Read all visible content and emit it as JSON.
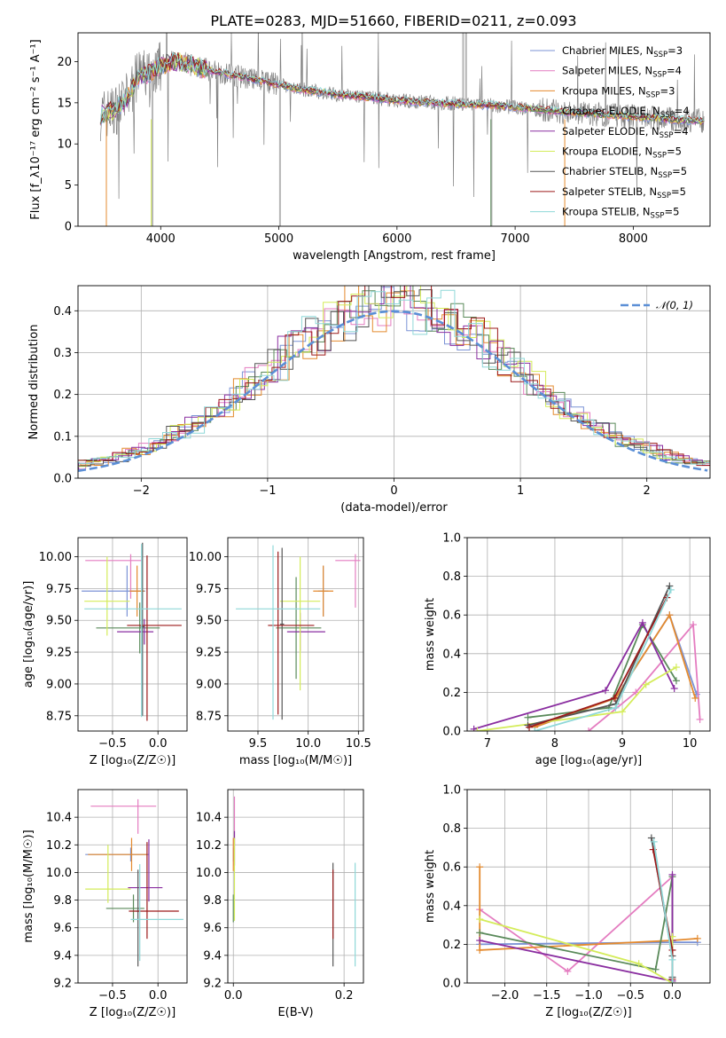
{
  "palette": {
    "Chabrier MILES": "#7b93d6",
    "Salpeter MILES": "#e47cc0",
    "Kroupa MILES": "#e48a2e",
    "Chabrier ELODIE": "#5a8a5a",
    "Salpeter ELODIE": "#8a2ea0",
    "Kroupa ELODIE": "#d4ec5a",
    "Chabrier STELIB": "#555555",
    "Salpeter STELIB": "#9c1a1a",
    "Kroupa STELIB": "#8fd8d8",
    "data": "#808080",
    "normal": "#5b8fd6"
  },
  "chart_data": [
    {
      "id": "spectrum",
      "type": "line",
      "title": "PLATE=0283, MJD=51660, FIBERID=0211, z=0.093",
      "xlabel": "wavelength [Angstrom, rest frame]",
      "ylabel": "Flux [f_λ10⁻¹⁷ erg cm⁻² s⁻¹ A⁻¹]",
      "xlim": [
        3300,
        8650
      ],
      "ylim": [
        0,
        23.5
      ],
      "xticks": [
        4000,
        5000,
        6000,
        7000,
        8000
      ],
      "yticks": [
        0,
        5,
        10,
        15,
        20
      ],
      "grid": false,
      "legend_position": "top-right",
      "legend": [
        {
          "name": "Chabrier MILES",
          "nssp": "3"
        },
        {
          "name": "Salpeter MILES",
          "nssp": "4"
        },
        {
          "name": "Kroupa MILES",
          "nssp": "3"
        },
        {
          "name": "Chabrier ELODIE",
          "nssp": "4"
        },
        {
          "name": "Salpeter ELODIE",
          "nssp": "4"
        },
        {
          "name": "Kroupa ELODIE",
          "nssp": "5"
        },
        {
          "name": "Chabrier STELIB",
          "nssp": "5"
        },
        {
          "name": "Salpeter STELIB",
          "nssp": "5"
        },
        {
          "name": "Kroupa STELIB",
          "nssp": "5"
        }
      ],
      "continuum": {
        "x": [
          3480,
          3600,
          3700,
          3800,
          3900,
          4000,
          4100,
          4200,
          4400,
          4600,
          4800,
          5000,
          5200,
          5500,
          5800,
          6000,
          6300,
          6600,
          6900,
          7200,
          7400,
          7600,
          7800,
          8000,
          8200,
          8400,
          8600
        ],
        "y": [
          13.5,
          14.0,
          15.2,
          18.0,
          18.6,
          19.5,
          20.0,
          19.8,
          19.0,
          18.4,
          17.8,
          17.2,
          16.6,
          16.0,
          15.6,
          15.3,
          15.0,
          14.8,
          14.6,
          14.2,
          13.9,
          13.7,
          13.5,
          13.3,
          13.1,
          12.9,
          12.8
        ]
      }
    },
    {
      "id": "residuals",
      "type": "histogram",
      "xlabel": "(data-model)/error",
      "ylabel": "Normed distribution",
      "xlim": [
        -2.5,
        2.5
      ],
      "ylim": [
        0,
        0.46
      ],
      "xticks": [
        -2,
        -1,
        0,
        1,
        2
      ],
      "yticks": [
        0.0,
        0.1,
        0.2,
        0.3,
        0.4
      ],
      "grid": true,
      "legend_position": "top-right",
      "legend": [
        {
          "name": "𝒩(0, 1)"
        }
      ],
      "normal": {
        "mean": 0,
        "std": 1
      }
    },
    {
      "id": "age-vs-z",
      "type": "errorbar",
      "xlabel": "Z [log₁₀(Z/Z☉)]",
      "ylabel": "age  [log₁₀(age/yr)]",
      "xlim": [
        -0.88,
        0.32
      ],
      "ylim": [
        8.63,
        10.15
      ],
      "xticks": [
        -0.5,
        0.0
      ],
      "yticks": [
        8.75,
        9.0,
        9.25,
        9.5,
        9.75,
        10.0
      ],
      "grid": true,
      "points": [
        {
          "model": "Chabrier MILES",
          "x": -0.34,
          "xerr": [
            0.5,
            0.2
          ],
          "y": 9.73,
          "yerr": [
            0.2,
            0.2
          ]
        },
        {
          "model": "Salpeter MILES",
          "x": -0.3,
          "xerr": [
            0.5,
            0.12
          ],
          "y": 9.97,
          "yerr": [
            0.3,
            0.05
          ]
        },
        {
          "model": "Kroupa MILES",
          "x": -0.23,
          "xerr": [
            0.08,
            0.08
          ],
          "y": 9.73,
          "yerr": [
            0.2,
            0.2
          ]
        },
        {
          "model": "Chabrier ELODIE",
          "x": -0.2,
          "xerr": [
            0.48,
            0.22
          ],
          "y": 9.44,
          "yerr": [
            0.2,
            0.2
          ]
        },
        {
          "model": "Salpeter ELODIE",
          "x": -0.15,
          "xerr": [
            0.3,
            0.1
          ],
          "y": 9.41,
          "yerr": [
            0.1,
            0.1
          ]
        },
        {
          "model": "Kroupa ELODIE",
          "x": -0.56,
          "xerr": [
            0.25,
            0.25
          ],
          "y": 9.65,
          "yerr": [
            0.27,
            0.35
          ]
        },
        {
          "model": "Chabrier STELIB",
          "x": -0.17,
          "xerr": [
            0.02,
            0.02
          ],
          "y": 9.45,
          "yerr": [
            0.7,
            0.66
          ]
        },
        {
          "model": "Salpeter STELIB",
          "x": -0.12,
          "xerr": [
            0.22,
            0.38
          ],
          "y": 9.46,
          "yerr": [
            0.75,
            0.55
          ]
        },
        {
          "model": "Kroupa STELIB",
          "x": -0.18,
          "xerr": [
            0.63,
            0.44
          ],
          "y": 9.59,
          "yerr": [
            0.85,
            0.51
          ]
        }
      ]
    },
    {
      "id": "age-vs-mass",
      "type": "errorbar",
      "xlabel": "mass [log₁₀(M/M☉)]",
      "ylabel": "",
      "xlim": [
        9.2,
        10.55
      ],
      "ylim": [
        8.63,
        10.15
      ],
      "xticks": [
        9.5,
        10.0,
        10.5
      ],
      "yticks": [
        8.75,
        9.0,
        9.25,
        9.5,
        9.75,
        10.0
      ],
      "grid": true,
      "points": [
        {
          "model": "Chabrier MILES",
          "x": 10.15,
          "xerr": [
            0.05,
            0.05
          ],
          "y": 9.73,
          "yerr": [
            0.2,
            0.2
          ]
        },
        {
          "model": "Salpeter MILES",
          "x": 10.47,
          "xerr": [
            0.2,
            0.05
          ],
          "y": 9.97,
          "yerr": [
            0.37,
            0.05
          ]
        },
        {
          "model": "Kroupa MILES",
          "x": 10.15,
          "xerr": [
            0.1,
            0.1
          ],
          "y": 9.73,
          "yerr": [
            0.2,
            0.2
          ]
        },
        {
          "model": "Chabrier ELODIE",
          "x": 9.88,
          "xerr": [
            0.2,
            0.25
          ],
          "y": 9.44,
          "yerr": [
            0.4,
            0.4
          ]
        },
        {
          "model": "Salpeter ELODIE",
          "x": 9.92,
          "xerr": [
            0.13,
            0.25
          ],
          "y": 9.41,
          "yerr": [
            0.15,
            0.15
          ]
        },
        {
          "model": "Kroupa ELODIE",
          "x": 9.92,
          "xerr": [
            0.2,
            0.2
          ],
          "y": 9.65,
          "yerr": [
            0.7,
            0.35
          ]
        },
        {
          "model": "Chabrier STELIB",
          "x": 9.74,
          "xerr": [
            0.02,
            0.02
          ],
          "y": 9.47,
          "yerr": [
            0.75,
            0.6
          ]
        },
        {
          "model": "Salpeter STELIB",
          "x": 9.7,
          "xerr": [
            0.1,
            0.36
          ],
          "y": 9.46,
          "yerr": [
            0.7,
            0.58
          ]
        },
        {
          "model": "Kroupa STELIB",
          "x": 9.65,
          "xerr": [
            0.37,
            0.47
          ],
          "y": 9.59,
          "yerr": [
            0.87,
            0.5
          ]
        }
      ]
    },
    {
      "id": "massweight-vs-age",
      "type": "line",
      "xlabel": "age  [log₁₀(age/yr)]",
      "ylabel": "mass weight",
      "xlim": [
        6.7,
        10.3
      ],
      "ylim": [
        0,
        1.0
      ],
      "xticks": [
        7,
        8,
        9,
        10
      ],
      "yticks": [
        0.0,
        0.2,
        0.4,
        0.6,
        0.8,
        1.0
      ],
      "grid": true,
      "series": [
        {
          "name": "Chabrier MILES",
          "x": [
            7.7,
            8.9,
            9.7,
            10.1
          ],
          "y": [
            0.02,
            0.17,
            0.6,
            0.19
          ]
        },
        {
          "name": "Salpeter MILES",
          "x": [
            8.5,
            9.2,
            10.05,
            10.15
          ],
          "y": [
            0.0,
            0.2,
            0.55,
            0.06
          ]
        },
        {
          "name": "Kroupa MILES",
          "x": [
            7.7,
            8.9,
            9.7,
            10.08
          ],
          "y": [
            0.02,
            0.17,
            0.6,
            0.17
          ]
        },
        {
          "name": "Chabrier ELODIE",
          "x": [
            7.6,
            8.8,
            9.3,
            9.8
          ],
          "y": [
            0.07,
            0.12,
            0.55,
            0.26
          ]
        },
        {
          "name": "Salpeter ELODIE",
          "x": [
            6.8,
            8.75,
            9.3,
            9.77
          ],
          "y": [
            0.01,
            0.21,
            0.56,
            0.22
          ]
        },
        {
          "name": "Kroupa ELODIE",
          "x": [
            6.85,
            9.0,
            9.35,
            9.8
          ],
          "y": [
            0.0,
            0.1,
            0.24,
            0.33
          ]
        },
        {
          "name": "Chabrier STELIB",
          "x": [
            7.6,
            8.9,
            9.7
          ],
          "y": [
            0.03,
            0.14,
            0.75
          ]
        },
        {
          "name": "Salpeter STELIB",
          "x": [
            7.62,
            8.88,
            9.66
          ],
          "y": [
            0.02,
            0.17,
            0.69
          ]
        },
        {
          "name": "Kroupa STELIB",
          "x": [
            7.7,
            8.9,
            9.72
          ],
          "y": [
            0.0,
            0.12,
            0.73
          ]
        }
      ]
    },
    {
      "id": "mass-vs-z",
      "type": "errorbar",
      "xlabel": "Z [log₁₀(Z/Z☉)]",
      "ylabel": "mass [log₁₀(M/M☉)]",
      "xlim": [
        -0.88,
        0.32
      ],
      "ylim": [
        9.2,
        10.6
      ],
      "xticks": [
        -0.5,
        0.0
      ],
      "yticks": [
        9.2,
        9.4,
        9.6,
        9.8,
        10.0,
        10.2,
        10.4
      ],
      "grid": true,
      "points": [
        {
          "model": "Chabrier MILES",
          "x": -0.3,
          "xerr": [
            0.5,
            0.2
          ],
          "y": 10.13,
          "yerr": [
            0.05,
            0.05
          ]
        },
        {
          "model": "Salpeter MILES",
          "x": -0.22,
          "xerr": [
            0.52,
            0.2
          ],
          "y": 10.48,
          "yerr": [
            0.2,
            0.05
          ]
        },
        {
          "model": "Kroupa MILES",
          "x": -0.29,
          "xerr": [
            0.48,
            0.17
          ],
          "y": 10.13,
          "yerr": [
            0.12,
            0.12
          ]
        },
        {
          "model": "Chabrier ELODIE",
          "x": -0.27,
          "xerr": [
            0.3,
            0.12
          ],
          "y": 9.74,
          "yerr": [
            0.1,
            0.1
          ]
        },
        {
          "model": "Salpeter ELODIE",
          "x": -0.1,
          "xerr": [
            0.23,
            0.15
          ],
          "y": 9.89,
          "yerr": [
            0.1,
            0.35
          ]
        },
        {
          "model": "Kroupa ELODIE",
          "x": -0.55,
          "xerr": [
            0.25,
            0.25
          ],
          "y": 9.88,
          "yerr": [
            0.1,
            0.32
          ]
        },
        {
          "model": "Chabrier STELIB",
          "x": -0.22,
          "xerr": [
            0.02,
            0.02
          ],
          "y": 9.72,
          "yerr": [
            0.4,
            0.3
          ]
        },
        {
          "model": "Salpeter STELIB",
          "x": -0.12,
          "xerr": [
            0.2,
            0.35
          ],
          "y": 9.72,
          "yerr": [
            0.2,
            0.5
          ]
        },
        {
          "model": "Kroupa STELIB",
          "x": -0.2,
          "xerr": [
            0.1,
            0.48
          ],
          "y": 9.66,
          "yerr": [
            0.3,
            0.4
          ]
        }
      ]
    },
    {
      "id": "mass-vs-ebv",
      "type": "errorbar",
      "xlabel": "E(B-V)",
      "ylabel": "",
      "xlim": [
        -0.01,
        0.235
      ],
      "ylim": [
        9.2,
        10.6
      ],
      "xticks": [
        0.0,
        0.2
      ],
      "yticks": [
        9.2,
        9.4,
        9.6,
        9.8,
        10.0,
        10.2,
        10.4
      ],
      "grid": true,
      "points": [
        {
          "model": "Chabrier MILES",
          "x": 0.0,
          "xerr": [
            0,
            0
          ],
          "y": 10.13,
          "yerr": [
            0.05,
            0.05
          ]
        },
        {
          "model": "Salpeter MILES",
          "x": 0.002,
          "xerr": [
            0,
            0
          ],
          "y": 10.45,
          "yerr": [
            0.25,
            0.1
          ]
        },
        {
          "model": "Kroupa MILES",
          "x": 0.0,
          "xerr": [
            0,
            0
          ],
          "y": 10.13,
          "yerr": [
            0.12,
            0.12
          ]
        },
        {
          "model": "Chabrier ELODIE",
          "x": 0.0,
          "xerr": [
            0,
            0
          ],
          "y": 9.74,
          "yerr": [
            0.1,
            0.1
          ]
        },
        {
          "model": "Salpeter ELODIE",
          "x": 0.002,
          "xerr": [
            0,
            0
          ],
          "y": 10.15,
          "yerr": [
            0.1,
            0.15
          ]
        },
        {
          "model": "Kroupa ELODIE",
          "x": 0.002,
          "xerr": [
            0,
            0
          ],
          "y": 10.0,
          "yerr": [
            0.35,
            0.25
          ]
        },
        {
          "model": "Chabrier STELIB",
          "x": 0.18,
          "xerr": [
            0,
            0
          ],
          "y": 9.72,
          "yerr": [
            0.4,
            0.35
          ]
        },
        {
          "model": "Salpeter STELIB",
          "x": 0.18,
          "xerr": [
            0,
            0
          ],
          "y": 9.72,
          "yerr": [
            0.2,
            0.3
          ]
        },
        {
          "model": "Kroupa STELIB",
          "x": 0.22,
          "xerr": [
            0,
            0
          ],
          "y": 9.7,
          "yerr": [
            0.38,
            0.37
          ]
        }
      ]
    },
    {
      "id": "massweight-vs-z",
      "type": "line",
      "xlabel": "Z [log₁₀(Z/Z☉)]",
      "ylabel": "mass weight",
      "xlim": [
        -2.45,
        0.45
      ],
      "ylim": [
        0,
        1.0
      ],
      "xticks": [
        -2.0,
        -1.5,
        -1.0,
        -0.5,
        0.0
      ],
      "yticks": [
        0.0,
        0.2,
        0.4,
        0.6,
        0.8,
        1.0
      ],
      "grid": true,
      "series": [
        {
          "name": "Chabrier MILES",
          "x": [
            -2.3,
            0.0,
            0.3
          ],
          "y": [
            0.2,
            0.21,
            0.21
          ]
        },
        {
          "name": "Salpeter MILES",
          "x": [
            -2.3,
            -1.25,
            0.0,
            0.0
          ],
          "y": [
            0.38,
            0.06,
            0.55,
            0.01
          ]
        },
        {
          "name": "Kroupa MILES",
          "x": [
            -2.3,
            -2.3,
            0.0,
            0.3
          ],
          "y": [
            0.6,
            0.17,
            0.22,
            0.23
          ]
        },
        {
          "name": "Chabrier ELODIE",
          "x": [
            -2.3,
            -0.2,
            0.0,
            0.0
          ],
          "y": [
            0.26,
            0.07,
            0.55,
            0.0
          ]
        },
        {
          "name": "Salpeter ELODIE",
          "x": [
            -2.3,
            0.0,
            0.0,
            0.0
          ],
          "y": [
            0.22,
            0.01,
            0.56,
            0.22
          ]
        },
        {
          "name": "Kroupa ELODIE",
          "x": [
            -2.3,
            -0.4,
            0.0,
            0.0
          ],
          "y": [
            0.33,
            0.1,
            0.0,
            0.24
          ]
        },
        {
          "name": "Chabrier STELIB",
          "x": [
            -0.25,
            0.0,
            0.0
          ],
          "y": [
            0.75,
            0.14,
            0.03
          ]
        },
        {
          "name": "Salpeter STELIB",
          "x": [
            -0.23,
            0.0,
            0.0
          ],
          "y": [
            0.69,
            0.17,
            0.02
          ]
        },
        {
          "name": "Kroupa STELIB",
          "x": [
            -0.22,
            0.0,
            0.0
          ],
          "y": [
            0.73,
            0.12,
            0.0
          ]
        }
      ]
    }
  ]
}
